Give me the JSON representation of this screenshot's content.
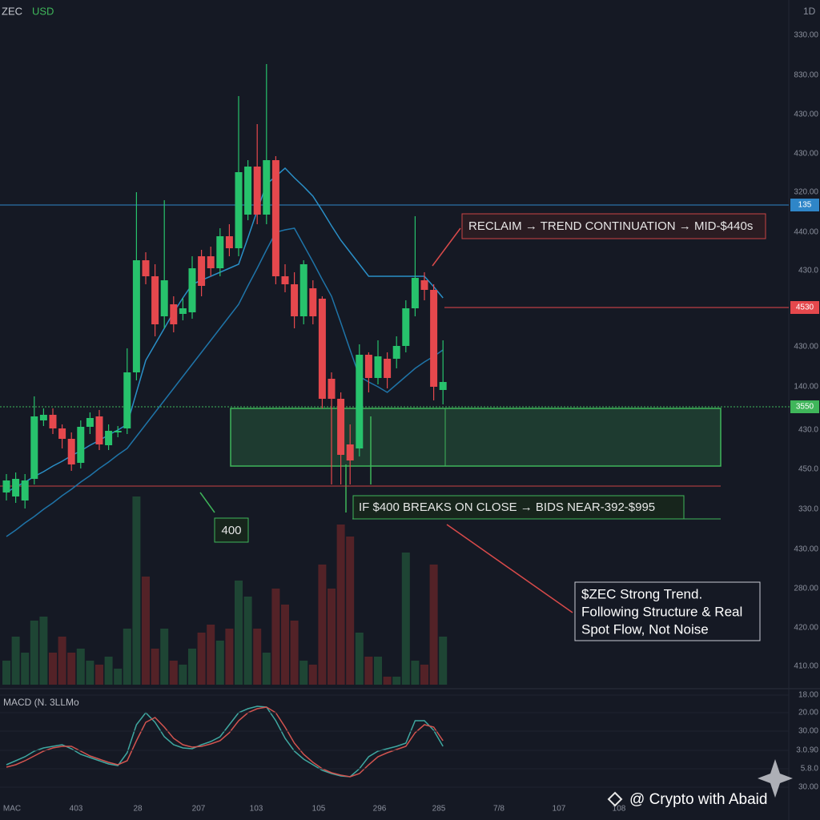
{
  "chart_data": {
    "type": "candlestick",
    "symbol": "ZEC",
    "currency": "USD",
    "interval": "1D",
    "indicator_label": "MACD (N. 3LLMo",
    "ylim": [
      0,
      860
    ],
    "volume_lim": [
      0,
      240
    ],
    "macd_lim": [
      0,
      150
    ],
    "up_color": "#27c26c",
    "down_color": "#e5484d",
    "candles": [
      [
        245,
        268,
        235,
        260
      ],
      [
        240,
        270,
        232,
        262
      ],
      [
        235,
        268,
        225,
        260
      ],
      [
        262,
        365,
        255,
        340
      ],
      [
        335,
        350,
        328,
        342
      ],
      [
        342,
        350,
        318,
        325
      ],
      [
        325,
        330,
        300,
        312
      ],
      [
        312,
        320,
        272,
        280
      ],
      [
        282,
        335,
        275,
        327
      ],
      [
        327,
        345,
        318,
        338
      ],
      [
        340,
        348,
        298,
        305
      ],
      [
        304,
        330,
        298,
        322
      ],
      [
        320,
        328,
        314,
        322
      ],
      [
        325,
        425,
        318,
        395
      ],
      [
        395,
        620,
        385,
        535
      ],
      [
        535,
        545,
        505,
        515
      ],
      [
        515,
        530,
        440,
        455
      ],
      [
        465,
        610,
        450,
        510
      ],
      [
        480,
        490,
        445,
        455
      ],
      [
        468,
        488,
        460,
        475
      ],
      [
        470,
        540,
        462,
        525
      ],
      [
        540,
        548,
        490,
        503
      ],
      [
        540,
        552,
        515,
        525
      ],
      [
        525,
        575,
        515,
        565
      ],
      [
        565,
        580,
        540,
        550
      ],
      [
        550,
        740,
        540,
        645
      ],
      [
        592,
        660,
        585,
        652
      ],
      [
        652,
        705,
        580,
        592
      ],
      [
        592,
        780,
        580,
        660
      ],
      [
        660,
        665,
        505,
        515
      ],
      [
        515,
        530,
        495,
        505
      ],
      [
        505,
        520,
        450,
        465
      ],
      [
        465,
        535,
        455,
        530
      ],
      [
        500,
        510,
        455,
        465
      ],
      [
        487,
        490,
        350,
        362
      ],
      [
        387,
        395,
        255,
        362
      ],
      [
        362,
        370,
        255,
        292
      ],
      [
        305,
        330,
        255,
        285
      ],
      [
        300,
        430,
        290,
        417
      ],
      [
        417,
        420,
        370,
        388
      ],
      [
        388,
        435,
        380,
        415
      ],
      [
        412,
        420,
        375,
        388
      ],
      [
        412,
        440,
        400,
        428
      ],
      [
        428,
        485,
        420,
        475
      ],
      [
        475,
        590,
        465,
        513
      ],
      [
        510,
        520,
        485,
        498
      ],
      [
        498,
        505,
        360,
        377
      ],
      [
        373,
        435,
        355,
        383
      ]
    ],
    "volume": [
      30,
      60,
      40,
      80,
      85,
      40,
      60,
      40,
      45,
      30,
      25,
      35,
      20,
      70,
      235,
      135,
      45,
      70,
      30,
      25,
      45,
      65,
      75,
      55,
      70,
      130,
      110,
      70,
      40,
      120,
      100,
      80,
      30,
      25,
      150,
      120,
      200,
      185,
      65,
      35,
      35,
      10,
      10,
      165,
      30,
      25,
      150,
      60
    ],
    "ma": [
      {
        "color": "#2a8fc7",
        "values": [
          245,
          252,
          258,
          265,
          271,
          278,
          284,
          291,
          297,
          304,
          310,
          317,
          323,
          330,
          370,
          410,
          430,
          450,
          470,
          488,
          505,
          510,
          515,
          520,
          525,
          530,
          563,
          597,
          630,
          640,
          650,
          638,
          627,
          615,
          597,
          578,
          560,
          545,
          530,
          515,
          515,
          515,
          515,
          515,
          515,
          515,
          502,
          488
        ]
      },
      {
        "color": "#1f74a8",
        "values": [
          190,
          198,
          207,
          215,
          224,
          232,
          241,
          249,
          258,
          266,
          275,
          283,
          292,
          300,
          315,
          330,
          345,
          360,
          375,
          390,
          405,
          420,
          435,
          450,
          465,
          480,
          503,
          525,
          548,
          570,
          573,
          575,
          554,
          533,
          511,
          490,
          457,
          423,
          390,
          383,
          377,
          370,
          380,
          390,
          400,
          408,
          415,
          423
        ]
      }
    ],
    "macd": [
      {
        "color": "#3fa7a0",
        "values": [
          45,
          50,
          55,
          62,
          66,
          68,
          70,
          65,
          58,
          54,
          50,
          46,
          44,
          60,
          95,
          110,
          98,
          80,
          70,
          66,
          65,
          70,
          74,
          80,
          95,
          110,
          115,
          118,
          117,
          100,
          78,
          62,
          52,
          45,
          38,
          34,
          31,
          30,
          40,
          55,
          62,
          65,
          68,
          72,
          100,
          100,
          88,
          68
        ]
      },
      {
        "color": "#d2544f",
        "values": [
          42,
          45,
          50,
          56,
          62,
          66,
          68,
          68,
          62,
          56,
          52,
          48,
          45,
          50,
          75,
          98,
          104,
          92,
          78,
          70,
          67,
          68,
          71,
          75,
          85,
          100,
          110,
          115,
          117,
          110,
          92,
          72,
          58,
          48,
          40,
          35,
          32,
          30,
          34,
          45,
          55,
          60,
          64,
          68,
          85,
          95,
          92,
          75
        ]
      }
    ],
    "levels": [
      {
        "value": 604,
        "color": "#2f86c8",
        "tag": "135"
      },
      {
        "value": 476,
        "color": "#e5484d",
        "tag": "4530"
      },
      {
        "value": 352,
        "color": "#3fb65a",
        "tag": "3550"
      },
      {
        "value": 253,
        "color": "#c94444"
      },
      {
        "value": 212,
        "color": "#3fb65a"
      }
    ],
    "zone": [
      278,
      350
    ],
    "price_scale_labels": [
      "330.00",
      "830.00",
      "430.00",
      "430.00",
      "320.00",
      "440.00",
      "430.0",
      "430.00",
      "140.00",
      "430.0",
      "450.0",
      "330.0",
      "430.00",
      "280.00",
      "420.00",
      "410.00"
    ],
    "macd_scale_labels": [
      "18.00",
      "20.00",
      "30.00",
      "3.0.90",
      "5.8.0",
      "30.00"
    ],
    "time_labels": [
      "MAC",
      "403",
      "28",
      "207",
      "103",
      "105",
      "296",
      "285",
      "7/8",
      "107",
      "108"
    ],
    "annotations": {
      "reclaim": "RECLAIM → TREND CONTINUATION → MID-$440s",
      "level": "400",
      "breaks": "IF $400 BREAKS ON CLOSE → BIDS NEAR-392-$995",
      "summary": [
        "$ZEC Strong Trend.",
        "Following Structure & Real",
        "Spot Flow, Not Noise"
      ]
    },
    "watermark": "@ Crypto with Abaid"
  }
}
